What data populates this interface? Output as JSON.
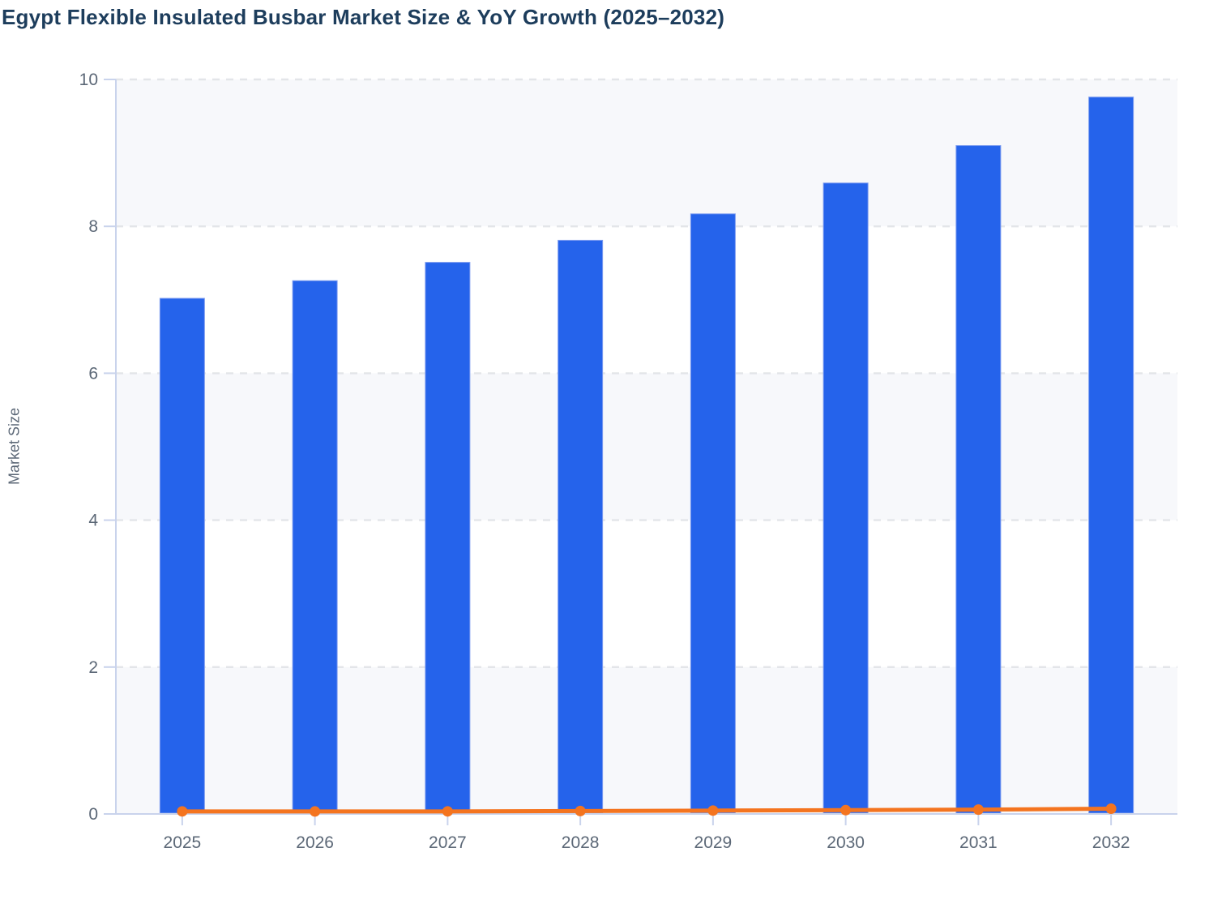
{
  "title": "Egypt Flexible Insulated Busbar Market Size & YoY Growth (2025–2032)",
  "y_axis": {
    "label": "Market Size",
    "tick_labels": [
      "0",
      "2",
      "4",
      "6",
      "8",
      "10"
    ]
  },
  "colors": {
    "title": "#1d3d5c",
    "axis_label": "#5c6877",
    "tick_label": "#5c6877",
    "band_fill": "#f7f8fb",
    "gridline": "#e3e5e9",
    "axis_line": "#c9d3ec",
    "bar_fill": "#2563eb",
    "bar_edge": "#7d9cf0",
    "line": "#f4741f"
  },
  "chart_data": {
    "type": "bar",
    "title": "Egypt Flexible Insulated Busbar Market Size & YoY Growth (2025–2032)",
    "xlabel": "",
    "ylabel": "Market Size",
    "ylim": [
      0,
      10
    ],
    "yticks": [
      0,
      2,
      4,
      6,
      8,
      10
    ],
    "grid": "horizontal-dashed",
    "background_bands": "alternating light gray between gridlines (0-2, 4-6, 8-10 shaded)",
    "legend_position": "none",
    "categories": [
      "2025",
      "2026",
      "2027",
      "2028",
      "2029",
      "2030",
      "2031",
      "2032"
    ],
    "series": [
      {
        "name": "Market Size",
        "type": "bar",
        "color": "#2563eb",
        "values": [
          7.02,
          7.26,
          7.51,
          7.81,
          8.17,
          8.59,
          9.1,
          9.76
        ]
      },
      {
        "name": "YoY Growth",
        "type": "line",
        "color": "#f4741f",
        "marker": "circle",
        "values": [
          0.035,
          0.034,
          0.035,
          0.04,
          0.046,
          0.052,
          0.059,
          0.072
        ]
      }
    ]
  }
}
